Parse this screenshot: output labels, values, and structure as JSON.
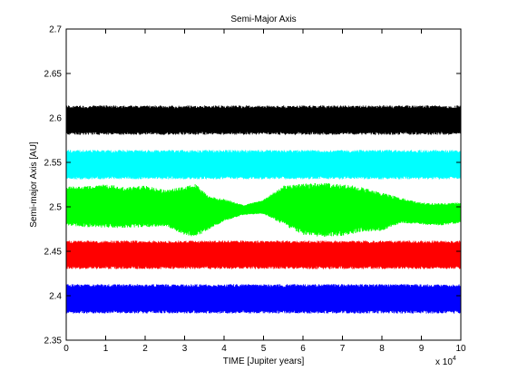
{
  "chart_data": {
    "type": "line",
    "title": "Semi-Major Axis",
    "xlabel": "TIME [Jupiter years]",
    "ylabel": "Semi-major Axis [AU]",
    "x_multiplier_label": "x 10",
    "x_multiplier_exponent": "4",
    "xlim": [
      0,
      10
    ],
    "ylim": [
      2.35,
      2.7
    ],
    "x_ticks": [
      "0",
      "1",
      "2",
      "3",
      "4",
      "5",
      "6",
      "7",
      "8",
      "9",
      "10"
    ],
    "y_ticks": [
      "2.35",
      "2.4",
      "2.45",
      "2.5",
      "2.55",
      "2.6",
      "2.65",
      "2.7"
    ],
    "grid": false,
    "series": [
      {
        "color": "#000000",
        "x": [
          0,
          1,
          2,
          3,
          4,
          5,
          6,
          7,
          8,
          9,
          10
        ],
        "upper": [
          2.614,
          2.614,
          2.614,
          2.614,
          2.614,
          2.614,
          2.614,
          2.614,
          2.614,
          2.614,
          2.614
        ],
        "lower": [
          2.581,
          2.581,
          2.581,
          2.581,
          2.581,
          2.581,
          2.581,
          2.581,
          2.581,
          2.581,
          2.581
        ]
      },
      {
        "color": "#00ffff",
        "x": [
          0,
          1,
          2,
          3,
          4,
          5,
          6,
          7,
          8,
          9,
          10
        ],
        "upper": [
          2.564,
          2.564,
          2.564,
          2.564,
          2.564,
          2.564,
          2.564,
          2.564,
          2.564,
          2.564,
          2.564
        ],
        "lower": [
          2.531,
          2.531,
          2.531,
          2.531,
          2.531,
          2.531,
          2.531,
          2.531,
          2.531,
          2.531,
          2.531
        ]
      },
      {
        "color": "#00ff00",
        "x": [
          0,
          0.5,
          1,
          1.5,
          2,
          2.5,
          3,
          3.3,
          3.6,
          4,
          4.5,
          5,
          5.5,
          6,
          6.5,
          7,
          7.5,
          8,
          8.5,
          9,
          9.5,
          10
        ],
        "upper": [
          2.523,
          2.523,
          2.526,
          2.522,
          2.524,
          2.519,
          2.523,
          2.526,
          2.512,
          2.509,
          2.502,
          2.508,
          2.524,
          2.526,
          2.527,
          2.526,
          2.522,
          2.516,
          2.51,
          2.505,
          2.504,
          2.505
        ],
        "lower": [
          2.479,
          2.477,
          2.476,
          2.476,
          2.477,
          2.478,
          2.468,
          2.466,
          2.474,
          2.484,
          2.491,
          2.492,
          2.48,
          2.468,
          2.466,
          2.467,
          2.472,
          2.473,
          2.482,
          2.48,
          2.479,
          2.482
        ]
      },
      {
        "color": "#ff0000",
        "x": [
          0,
          1,
          2,
          3,
          4,
          5,
          6,
          7,
          8,
          9,
          10
        ],
        "upper": [
          2.462,
          2.462,
          2.462,
          2.462,
          2.462,
          2.462,
          2.462,
          2.462,
          2.462,
          2.462,
          2.462
        ],
        "lower": [
          2.43,
          2.43,
          2.43,
          2.43,
          2.43,
          2.43,
          2.43,
          2.43,
          2.43,
          2.43,
          2.43
        ]
      },
      {
        "color": "#0000ff",
        "x": [
          0,
          1,
          2,
          3,
          4,
          5,
          6,
          7,
          8,
          9,
          10
        ],
        "upper": [
          2.413,
          2.413,
          2.413,
          2.413,
          2.413,
          2.413,
          2.413,
          2.413,
          2.413,
          2.413,
          2.413
        ],
        "lower": [
          2.38,
          2.38,
          2.38,
          2.38,
          2.38,
          2.38,
          2.38,
          2.38,
          2.38,
          2.38,
          2.38
        ]
      }
    ]
  }
}
